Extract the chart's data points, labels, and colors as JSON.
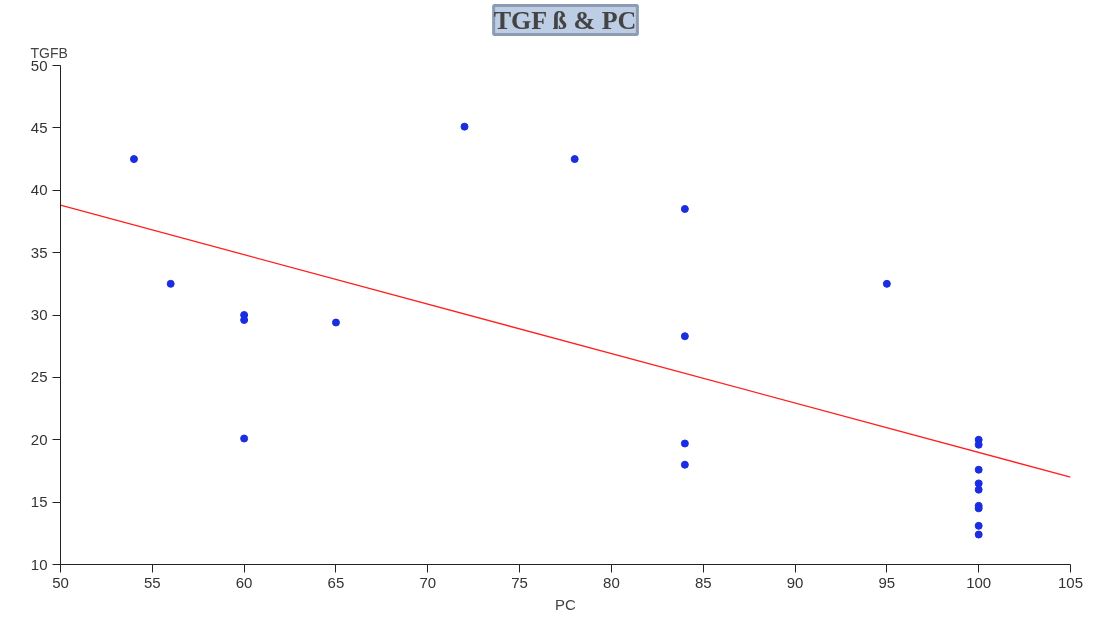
{
  "chart_data": {
    "type": "scatter",
    "title": "TGF ß & PC",
    "xlabel": "PC",
    "ylabel": "TGFB",
    "xlim": [
      50,
      105
    ],
    "xticks": [
      50,
      55,
      60,
      65,
      70,
      75,
      80,
      85,
      90,
      95,
      100,
      105
    ],
    "ylim": [
      10,
      50
    ],
    "yticks": [
      10,
      15,
      20,
      25,
      30,
      35,
      40,
      45,
      50
    ],
    "grid": false,
    "series": [
      {
        "marker": "circle",
        "color": "#1a2ee0",
        "x": [
          54,
          56,
          60,
          60,
          60,
          65,
          72,
          78,
          84,
          84,
          84,
          84,
          95,
          100,
          100,
          100,
          100,
          100,
          100,
          100,
          100,
          100
        ],
        "values": [
          42.5,
          32.5,
          30,
          29.6,
          20.1,
          29.4,
          45.1,
          42.5,
          38.5,
          28.3,
          19.7,
          18,
          32.5,
          20,
          19.6,
          17.6,
          16.5,
          16,
          14.7,
          14.5,
          13.1,
          12.4
        ]
      },
      {
        "type": "line",
        "color": "#ff2020",
        "x": [
          50,
          105
        ],
        "values": [
          38.8,
          17
        ]
      }
    ]
  }
}
